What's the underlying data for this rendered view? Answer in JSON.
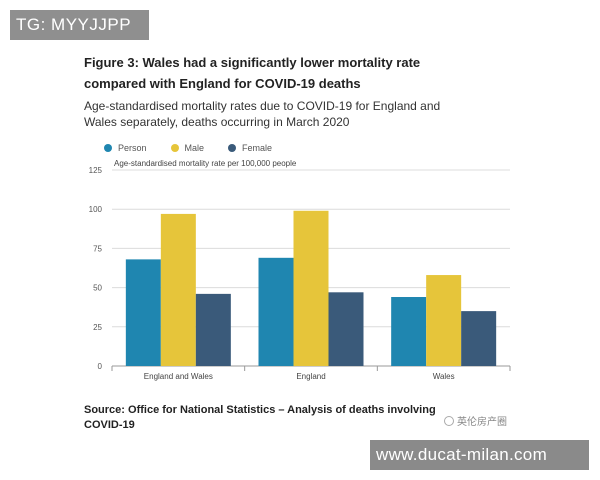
{
  "overlay": {
    "tg_label": "TG: MYYJJPP",
    "url_label": "www.ducat-milan.com",
    "wechat_label": "英伦房产圈"
  },
  "figure": {
    "title": "Figure 3: Wales had a significantly lower mortality rate compared with England for COVID-19 deaths",
    "subtitle": "Age-standardised mortality rates due to COVID-19 for England and Wales separately, deaths occurring in March 2020",
    "source": "Source: Office for National Statistics – Analysis of deaths involving COVID-19"
  },
  "chart_data": {
    "type": "bar",
    "ylabel": "Age-standardised mortality rate per 100,000 people",
    "categories": [
      "England and Wales",
      "England",
      "Wales"
    ],
    "ylim": [
      0,
      125
    ],
    "yticks": [
      0,
      25,
      50,
      75,
      100,
      125
    ],
    "grid": true,
    "legend_position": "top-left",
    "series": [
      {
        "name": "Person",
        "color": "#1f86b0",
        "values": [
          68,
          69,
          44
        ]
      },
      {
        "name": "Male",
        "color": "#e6c53a",
        "values": [
          97,
          99,
          58
        ]
      },
      {
        "name": "Female",
        "color": "#3a5a7a",
        "values": [
          46,
          47,
          35
        ]
      }
    ]
  }
}
